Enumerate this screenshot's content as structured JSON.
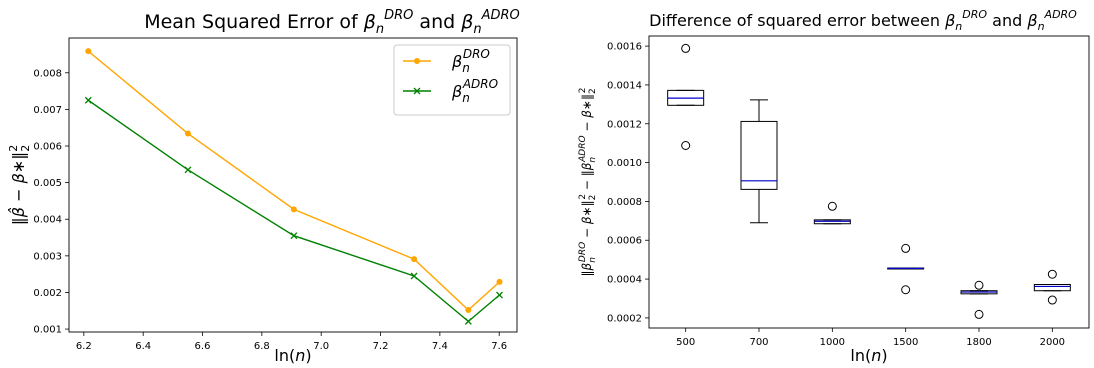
{
  "chart_data": [
    {
      "type": "line",
      "title": "Mean Squared Error of β_n^DRO and β_n^ADRO",
      "title_parts": {
        "pre": "Mean Squared Error of ",
        "beta1": "β",
        "sub1": "n",
        "sup1": "DRO",
        "mid": " and ",
        "beta2": "β",
        "sub2": "n",
        "sup2": "ADRO"
      },
      "xlabel": "ln(n)",
      "xlabel_parts": {
        "pre": "ln(",
        "var": "n",
        "post": ")"
      },
      "ylabel": "‖β̂ − β∗‖₂²",
      "ylabel_parts": {
        "text": "‖β̂ − β∗‖",
        "sub": "2",
        "sup": "2"
      },
      "xlim": [
        6.15,
        7.66
      ],
      "ylim": [
        0.00092,
        0.00895
      ],
      "xticks": [
        6.2,
        6.4,
        6.6,
        6.8,
        7.0,
        7.2,
        7.4,
        7.6
      ],
      "xtick_labels": [
        "6.2",
        "6.4",
        "6.6",
        "6.8",
        "7.0",
        "7.2",
        "7.4",
        "7.6"
      ],
      "yticks": [
        0.001,
        0.002,
        0.003,
        0.004,
        0.005,
        0.006,
        0.007,
        0.008
      ],
      "ytick_labels": [
        "0.001",
        "0.002",
        "0.003",
        "0.004",
        "0.005",
        "0.006",
        "0.007",
        "0.008"
      ],
      "legend_position": "top-right",
      "series": [
        {
          "name": "β_n^DRO",
          "legend_parts": {
            "beta": "β",
            "sub": "n",
            "sup": "DRO"
          },
          "color": "#ffa500",
          "marker": "circle",
          "x": [
            6.215,
            6.551,
            6.908,
            7.313,
            7.496,
            7.601
          ],
          "y": [
            0.00859,
            0.00634,
            0.00427,
            0.00291,
            0.00152,
            0.00229
          ]
        },
        {
          "name": "β_n^ADRO",
          "legend_parts": {
            "beta": "β",
            "sub": "n",
            "sup": "ADRO"
          },
          "color": "#008000",
          "marker": "x",
          "x": [
            6.215,
            6.551,
            6.908,
            7.313,
            7.496,
            7.601
          ],
          "y": [
            0.00725,
            0.00535,
            0.00355,
            0.00245,
            0.00121,
            0.00193
          ]
        }
      ]
    },
    {
      "type": "box",
      "title": "Difference of squared error between β_n^DRO and β_n^ADRO",
      "title_parts": {
        "pre": "Difference of squared error between ",
        "beta1": "β",
        "sub1": "n",
        "sup1": "DRO",
        "mid": " and ",
        "beta2": "β",
        "sub2": "n",
        "sup2": "ADRO"
      },
      "xlabel": "ln(n)",
      "xlabel_parts": {
        "pre": "ln(",
        "var": "n",
        "post": ")"
      },
      "ylabel": "‖β_n^DRO − β∗‖₂² − ‖β_n^ADRO − β∗‖₂²",
      "ylabel_parts": {
        "a": "‖β",
        "a_sub": "n",
        "a_sup": "DRO",
        "b": " − β∗‖",
        "b_sub": "2",
        "b_sup": "2",
        "c": " − ‖β",
        "c_sub": "n",
        "c_sup": "ADRO",
        "d": " − β∗‖",
        "d_sub": "2",
        "d_sup": "2"
      },
      "ylim": [
        0.000148,
        0.001652
      ],
      "yticks": [
        0.0002,
        0.0004,
        0.0006,
        0.0008,
        0.001,
        0.0012,
        0.0014,
        0.0016
      ],
      "ytick_labels": [
        "0.0002",
        "0.0004",
        "0.0006",
        "0.0008",
        "0.0010",
        "0.0012",
        "0.0014",
        "0.0016"
      ],
      "categories": [
        "500",
        "700",
        "1000",
        "1500",
        "1800",
        "2000"
      ],
      "median_color": "#0000cc",
      "boxes": [
        {
          "whislo": 0.001295,
          "q1": 0.001295,
          "med": 0.001332,
          "q3": 0.001372,
          "whishi": 0.001372,
          "fliers": [
            0.001588,
            0.001088
          ]
        },
        {
          "whislo": 0.00069,
          "q1": 0.000862,
          "med": 0.000906,
          "q3": 0.001212,
          "whishi": 0.001323,
          "fliers": []
        },
        {
          "whislo": 0.000685,
          "q1": 0.000685,
          "med": 0.000698,
          "q3": 0.000705,
          "whishi": 0.000705,
          "fliers": [
            0.000775
          ]
        },
        {
          "whislo": 0.000453,
          "q1": 0.000453,
          "med": 0.000455,
          "q3": 0.000457,
          "whishi": 0.000457,
          "fliers": [
            0.000558,
            0.000345
          ]
        },
        {
          "whislo": 0.000324,
          "q1": 0.000324,
          "med": 0.000333,
          "q3": 0.00034,
          "whishi": 0.00034,
          "fliers": [
            0.000368,
            0.000218
          ]
        },
        {
          "whislo": 0.00034,
          "q1": 0.00034,
          "med": 0.000362,
          "q3": 0.000372,
          "whishi": 0.000372,
          "fliers": [
            0.000425,
            0.000292
          ]
        }
      ]
    }
  ]
}
